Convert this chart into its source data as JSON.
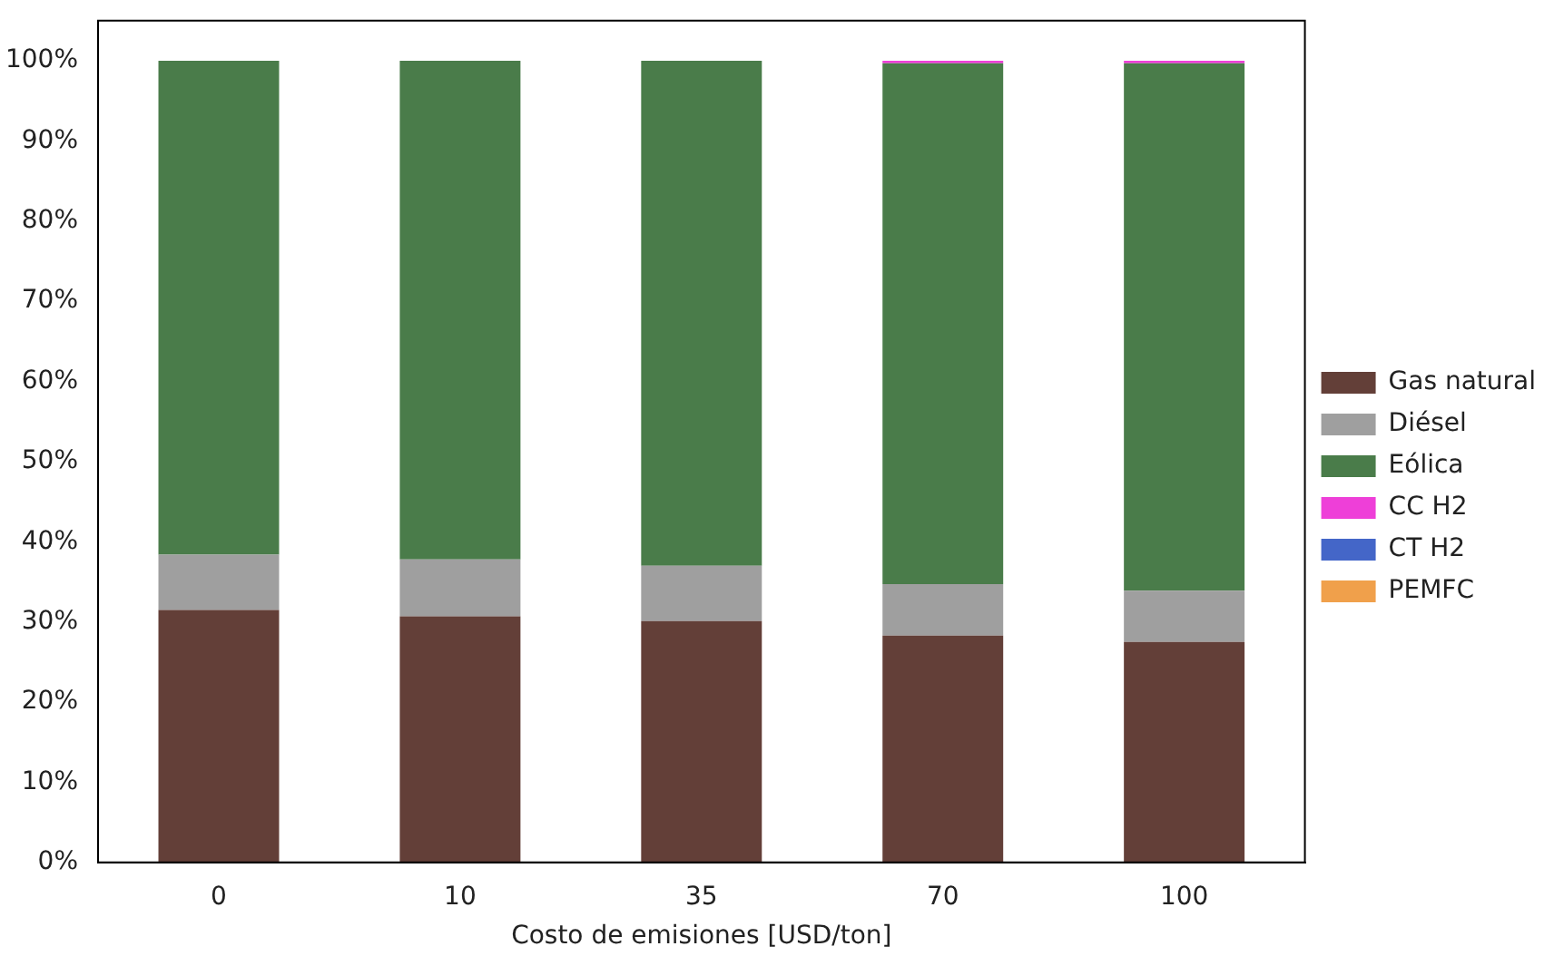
{
  "chart_data": {
    "type": "bar",
    "stacked": true,
    "xlabel": "Costo de emisiones [USD/ton]",
    "categories": [
      "0",
      "10",
      "35",
      "70",
      "100"
    ],
    "series": [
      {
        "name": "Gas natural",
        "color": "#633f38",
        "values": [
          31.5,
          30.7,
          30.1,
          28.3,
          27.5
        ]
      },
      {
        "name": "Diésel",
        "color": "#9f9f9f",
        "values": [
          6.9,
          7.1,
          6.9,
          6.4,
          6.4
        ]
      },
      {
        "name": "Eólica",
        "color": "#4a7c4a",
        "values": [
          61.6,
          62.2,
          63.0,
          65.0,
          65.8
        ]
      },
      {
        "name": "CC H2",
        "color": "#ee3fd8",
        "values": [
          0,
          0,
          0,
          0.3,
          0.3
        ]
      },
      {
        "name": "CT H2",
        "color": "#4466c8",
        "values": [
          0,
          0,
          0,
          0,
          0
        ]
      },
      {
        "name": "PEMFC",
        "color": "#f0a04b",
        "values": [
          0,
          0,
          0,
          0,
          0
        ]
      }
    ],
    "ylim": [
      0,
      105
    ],
    "yticks": [
      {
        "value": 0,
        "label": "0%"
      },
      {
        "value": 10,
        "label": "10%"
      },
      {
        "value": 20,
        "label": "20%"
      },
      {
        "value": 30,
        "label": "30%"
      },
      {
        "value": 40,
        "label": "40%"
      },
      {
        "value": 50,
        "label": "50%"
      },
      {
        "value": 60,
        "label": "60%"
      },
      {
        "value": 70,
        "label": "70%"
      },
      {
        "value": 80,
        "label": "80%"
      },
      {
        "value": 90,
        "label": "90%"
      },
      {
        "value": 100,
        "label": "100%"
      }
    ],
    "grid": false,
    "legend": "right"
  }
}
